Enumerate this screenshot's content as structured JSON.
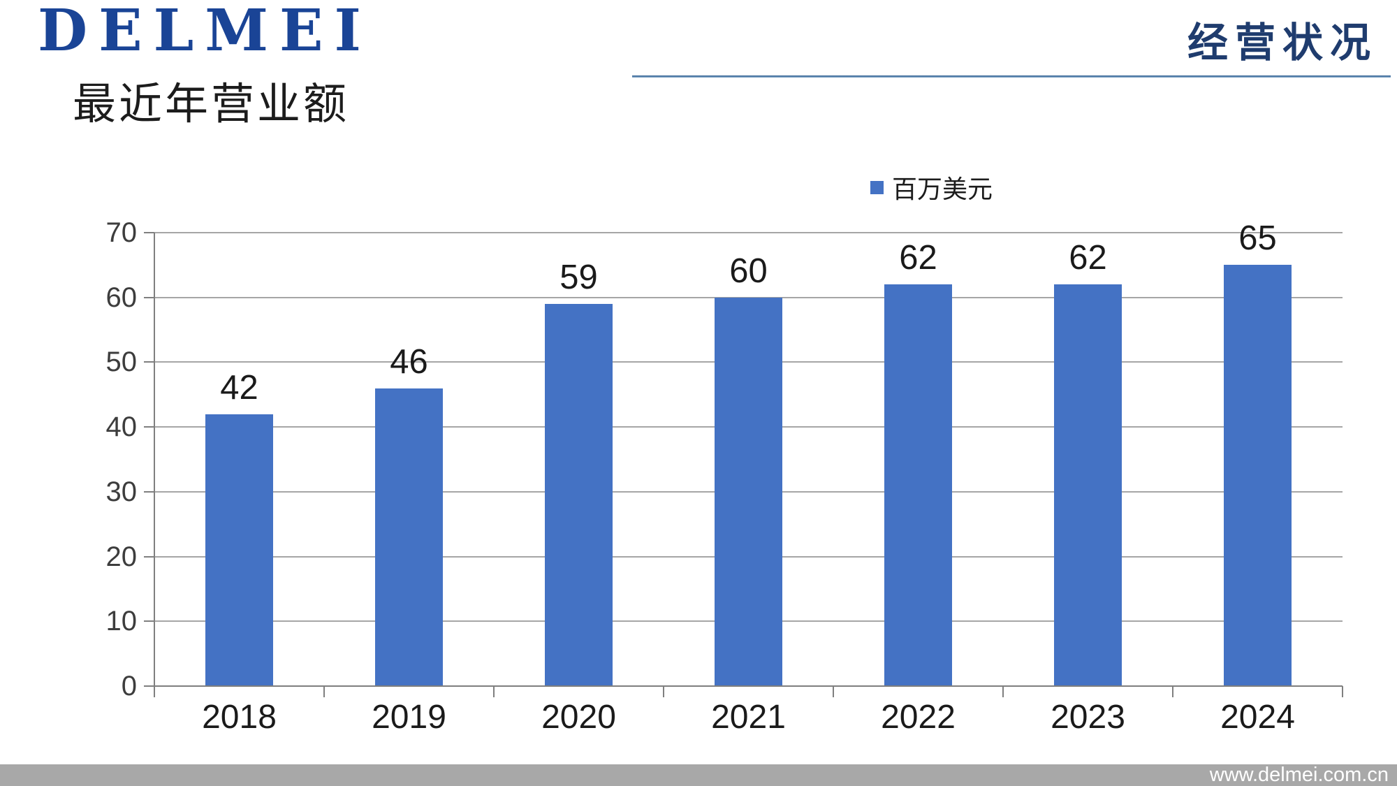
{
  "header": {
    "logo_text": "DELMEI",
    "section_label": "经营状况"
  },
  "title": "最近年营业额",
  "legend": {
    "label": "百万美元",
    "swatch_color": "#4472C4"
  },
  "footer": {
    "url": "www.delmei.com.cn"
  },
  "chart_data": {
    "type": "bar",
    "title": "最近年营业额",
    "categories": [
      "2018",
      "2019",
      "2020",
      "2021",
      "2022",
      "2023",
      "2024"
    ],
    "series": [
      {
        "name": "百万美元",
        "values": [
          42,
          46,
          59,
          60,
          62,
          62,
          65
        ]
      }
    ],
    "data_labels": [
      42,
      46,
      59,
      60,
      62,
      62,
      65
    ],
    "xlabel": "",
    "ylabel": "",
    "ylim": [
      0,
      70
    ],
    "yticks": [
      0,
      10,
      20,
      30,
      40,
      50,
      60,
      70
    ],
    "grid": true,
    "legend_position": "top",
    "bar_color": "#4472C4"
  }
}
